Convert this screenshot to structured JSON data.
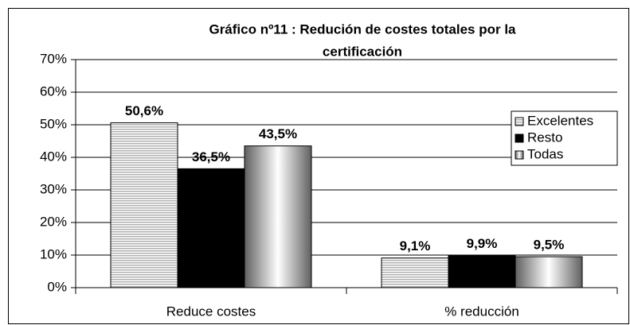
{
  "chart_data": {
    "type": "bar",
    "title": [
      "Gráfico nº11 : Redución de costes totales por la",
      "certificación"
    ],
    "categories": [
      "Reduce costes",
      "% reducción"
    ],
    "series": [
      {
        "name": "Excelentes",
        "color": "#b0b0b0",
        "values": [
          50.6,
          9.1
        ],
        "value_labels": [
          "50,6%",
          "9,1%"
        ]
      },
      {
        "name": "Resto",
        "color": "#000000",
        "values": [
          36.5,
          9.9
        ],
        "value_labels": [
          "36,5%",
          "9,9%"
        ]
      },
      {
        "name": "Todas",
        "color": "#ffffff",
        "values": [
          43.5,
          9.5
        ],
        "value_labels": [
          "43,5%",
          "9,5%"
        ]
      }
    ],
    "ylim": [
      0,
      70
    ],
    "yticks": [
      {
        "value": 0,
        "label": "0%"
      },
      {
        "value": 10,
        "label": "10%"
      },
      {
        "value": 20,
        "label": "20%"
      },
      {
        "value": 30,
        "label": "30%"
      },
      {
        "value": 40,
        "label": "40%"
      },
      {
        "value": 50,
        "label": "50%"
      },
      {
        "value": 60,
        "label": "60%"
      },
      {
        "value": 70,
        "label": "70%"
      }
    ],
    "grid": true,
    "legend": "upper right"
  }
}
